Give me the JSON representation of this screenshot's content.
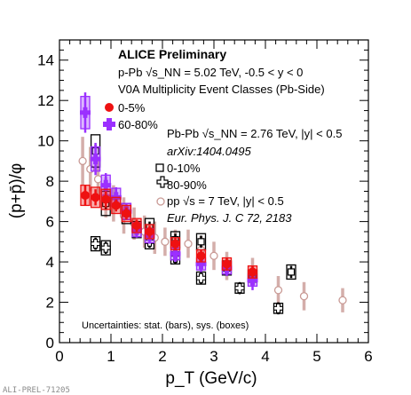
{
  "chart_data": {
    "type": "scatter",
    "xlabel": "p_T (GeV/c)",
    "ylabel": "(p+p̄)/φ",
    "xlim": [
      0,
      6
    ],
    "ylim": [
      0,
      15
    ],
    "xticks": [
      "0",
      "1",
      "2",
      "3",
      "4",
      "5",
      "6"
    ],
    "yticks": [
      "0",
      "2",
      "4",
      "6",
      "8",
      "10",
      "12",
      "14"
    ],
    "legend_title": "ALICE Preliminary",
    "legend_lines": {
      "ppb_system": "p-Pb √s_NN = 5.02 TeV, -0.5 < y < 0",
      "ppb_classes": "V0A Multiplicity Event Classes (Pb-Side)",
      "pbpb_system": "Pb-Pb √s_NN = 2.76 TeV, |y| < 0.5",
      "pbpb_ref": "arXiv:1404.0495",
      "pp_ref": "Eur. Phys. J. C 72, 2183"
    },
    "uncertainties_note": "Uncertainties: stat. (bars), sys. (boxes)",
    "series": [
      {
        "name": "0-5%",
        "color": "#ee1111",
        "marker": "filled-circle",
        "points": [
          {
            "x": 0.5,
            "y": 7.3,
            "stat": 0.5,
            "sys": 0.5
          },
          {
            "x": 0.7,
            "y": 7.2,
            "stat": 0.4,
            "sys": 0.5
          },
          {
            "x": 0.9,
            "y": 7.1,
            "stat": 0.4,
            "sys": 0.5
          },
          {
            "x": 1.1,
            "y": 6.8,
            "stat": 0.3,
            "sys": 0.4
          },
          {
            "x": 1.3,
            "y": 6.4,
            "stat": 0.3,
            "sys": 0.4
          },
          {
            "x": 1.5,
            "y": 5.8,
            "stat": 0.3,
            "sys": 0.35
          },
          {
            "x": 1.75,
            "y": 5.5,
            "stat": 0.3,
            "sys": 0.35
          },
          {
            "x": 2.25,
            "y": 4.9,
            "stat": 0.3,
            "sys": 0.3
          },
          {
            "x": 2.75,
            "y": 4.3,
            "stat": 0.3,
            "sys": 0.3
          },
          {
            "x": 3.25,
            "y": 3.9,
            "stat": 0.3,
            "sys": 0.3
          },
          {
            "x": 3.75,
            "y": 3.5,
            "stat": 0.3,
            "sys": 0.3
          }
        ]
      },
      {
        "name": "60-80%",
        "color": "#9b30ff",
        "marker": "filled-cross",
        "points": [
          {
            "x": 0.5,
            "y": 11.4,
            "stat": 1.0,
            "sys": 0.8
          },
          {
            "x": 0.7,
            "y": 9.1,
            "stat": 0.8,
            "sys": 0.6
          },
          {
            "x": 0.9,
            "y": 7.8,
            "stat": 0.6,
            "sys": 0.5
          },
          {
            "x": 1.1,
            "y": 7.2,
            "stat": 0.5,
            "sys": 0.45
          },
          {
            "x": 1.3,
            "y": 6.5,
            "stat": 0.4,
            "sys": 0.4
          },
          {
            "x": 1.5,
            "y": 5.6,
            "stat": 0.4,
            "sys": 0.35
          },
          {
            "x": 1.75,
            "y": 5.3,
            "stat": 0.4,
            "sys": 0.35
          },
          {
            "x": 2.25,
            "y": 4.4,
            "stat": 0.4,
            "sys": 0.3
          },
          {
            "x": 2.75,
            "y": 3.9,
            "stat": 0.4,
            "sys": 0.3
          },
          {
            "x": 3.25,
            "y": 3.7,
            "stat": 0.4,
            "sys": 0.3
          },
          {
            "x": 3.75,
            "y": 3.1,
            "stat": 0.5,
            "sys": 0.3
          }
        ]
      },
      {
        "name": "0-10%",
        "color": "#000000",
        "marker": "open-square",
        "points": [
          {
            "x": 0.7,
            "y": 9.5,
            "stat": 0.3,
            "sys": 0.8
          },
          {
            "x": 0.9,
            "y": 6.9,
            "stat": 0.3,
            "sys": 0.6
          },
          {
            "x": 1.3,
            "y": 6.4,
            "stat": 0.3,
            "sys": 0.5
          },
          {
            "x": 1.75,
            "y": 5.7,
            "stat": 0.3,
            "sys": 0.45
          },
          {
            "x": 2.25,
            "y": 5.1,
            "stat": 0.3,
            "sys": 0.4
          },
          {
            "x": 2.75,
            "y": 5.0,
            "stat": 0.3,
            "sys": 0.4
          },
          {
            "x": 3.25,
            "y": 3.7,
            "stat": 0.3,
            "sys": 0.35
          },
          {
            "x": 3.75,
            "y": 3.3,
            "stat": 0.3,
            "sys": 0.3
          },
          {
            "x": 4.5,
            "y": 3.5,
            "stat": 0.3,
            "sys": 0.35
          }
        ]
      },
      {
        "name": "80-90%",
        "color": "#000000",
        "marker": "open-cross",
        "points": [
          {
            "x": 0.7,
            "y": 4.9,
            "stat": 0.3,
            "sys": 0.35
          },
          {
            "x": 0.9,
            "y": 4.7,
            "stat": 0.3,
            "sys": 0.35
          },
          {
            "x": 1.5,
            "y": 5.6,
            "stat": 0.3,
            "sys": 0.4
          },
          {
            "x": 1.75,
            "y": 5.0,
            "stat": 0.3,
            "sys": 0.35
          },
          {
            "x": 2.25,
            "y": 4.2,
            "stat": 0.3,
            "sys": 0.3
          },
          {
            "x": 2.75,
            "y": 3.2,
            "stat": 0.3,
            "sys": 0.3
          },
          {
            "x": 3.5,
            "y": 2.7,
            "stat": 0.3,
            "sys": 0.25
          },
          {
            "x": 4.25,
            "y": 1.7,
            "stat": 0.3,
            "sys": 0.25
          }
        ]
      },
      {
        "name": "pp √s = 7 TeV, |y| < 0.5",
        "color": "#c99a95",
        "marker": "open-circle",
        "points": [
          {
            "x": 0.45,
            "y": 9.0,
            "stat": 1.2,
            "sys": 0
          },
          {
            "x": 0.6,
            "y": 8.6,
            "stat": 1.1,
            "sys": 0
          },
          {
            "x": 0.75,
            "y": 8.1,
            "stat": 1.0,
            "sys": 0
          },
          {
            "x": 0.9,
            "y": 7.2,
            "stat": 1.0,
            "sys": 0
          },
          {
            "x": 1.05,
            "y": 6.9,
            "stat": 0.9,
            "sys": 0
          },
          {
            "x": 1.25,
            "y": 6.3,
            "stat": 0.9,
            "sys": 0
          },
          {
            "x": 1.45,
            "y": 5.9,
            "stat": 0.8,
            "sys": 0
          },
          {
            "x": 1.65,
            "y": 5.5,
            "stat": 0.8,
            "sys": 0
          },
          {
            "x": 1.85,
            "y": 5.2,
            "stat": 0.8,
            "sys": 0
          },
          {
            "x": 2.05,
            "y": 5.0,
            "stat": 0.7,
            "sys": 0
          },
          {
            "x": 2.25,
            "y": 4.9,
            "stat": 0.7,
            "sys": 0
          },
          {
            "x": 2.5,
            "y": 4.9,
            "stat": 0.7,
            "sys": 0
          },
          {
            "x": 2.75,
            "y": 4.6,
            "stat": 0.7,
            "sys": 0
          },
          {
            "x": 3.0,
            "y": 4.3,
            "stat": 0.7,
            "sys": 0
          },
          {
            "x": 3.25,
            "y": 3.8,
            "stat": 0.7,
            "sys": 0
          },
          {
            "x": 3.75,
            "y": 3.5,
            "stat": 0.7,
            "sys": 0
          },
          {
            "x": 4.25,
            "y": 2.6,
            "stat": 0.7,
            "sys": 0
          },
          {
            "x": 4.75,
            "y": 2.3,
            "stat": 0.7,
            "sys": 0
          },
          {
            "x": 5.5,
            "y": 2.1,
            "stat": 0.6,
            "sys": 0
          }
        ]
      }
    ]
  },
  "footer": {
    "label": "ALI-PREL-71205"
  }
}
